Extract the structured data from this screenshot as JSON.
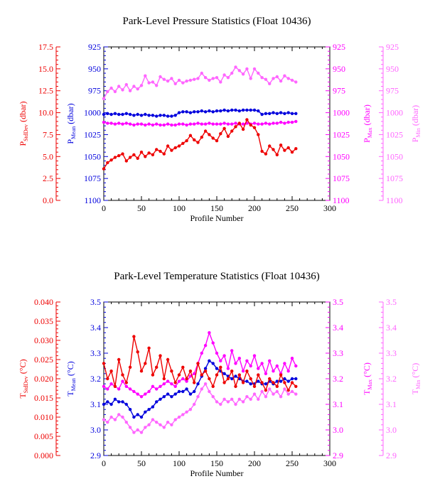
{
  "colors": {
    "stddev": "#ee0000",
    "mean": "#0000dd",
    "max": "#ff00ff",
    "min": "#ff66ff",
    "axis": "#000000"
  },
  "x_axis": {
    "label": "Profile Number",
    "ticks": [
      "0",
      "50",
      "100",
      "150",
      "200",
      "250",
      "300"
    ]
  },
  "chart_data": [
    {
      "type": "line",
      "title": "Park-Level Pressure Statistics (Float 10436)",
      "xlabel": "Profile Number",
      "xlim": [
        0,
        300
      ],
      "axes": [
        {
          "side": "far-left",
          "label_main": "P",
          "label_sub": "StdDev",
          "label_unit": " (dbar)",
          "color": "#ee0000",
          "range": [
            0,
            17.5
          ],
          "ticks": [
            "0.0",
            "2.5",
            "5.0",
            "7.5",
            "10.0",
            "12.5",
            "15.0",
            "17.5"
          ]
        },
        {
          "side": "left",
          "label_main": "P",
          "label_sub": "Mean",
          "label_unit": " (dbar)",
          "color": "#0000dd",
          "range": [
            1100,
            925
          ],
          "inverted": true,
          "ticks": [
            "1100",
            "1075",
            "1050",
            "1025",
            "1000",
            "975",
            "950",
            "925"
          ]
        },
        {
          "side": "right",
          "label_main": "P",
          "label_sub": "Max",
          "label_unit": " (dbar)",
          "color": "#ff00ff",
          "range": [
            1100,
            925
          ],
          "inverted": true,
          "ticks": [
            "1100",
            "1075",
            "1050",
            "1025",
            "1000",
            "975",
            "950",
            "925"
          ]
        },
        {
          "side": "far-right",
          "label_main": "P",
          "label_sub": "Min",
          "label_unit": " (dbar)",
          "color": "#ff66ff",
          "range": [
            1100,
            925
          ],
          "inverted": true,
          "ticks": [
            "1100",
            "1075",
            "1050",
            "1025",
            "1000",
            "975",
            "950",
            "925"
          ]
        }
      ],
      "series": [
        {
          "key": "stddev",
          "axis": 0,
          "color": "#ee0000",
          "x": [
            0,
            5,
            10,
            15,
            20,
            25,
            30,
            35,
            40,
            45,
            50,
            55,
            60,
            65,
            70,
            75,
            80,
            85,
            90,
            95,
            100,
            105,
            110,
            115,
            120,
            125,
            130,
            135,
            140,
            145,
            150,
            155,
            160,
            165,
            170,
            175,
            180,
            185,
            190,
            195,
            200,
            205,
            210,
            215,
            220,
            225,
            230,
            235,
            240,
            245,
            250,
            255
          ],
          "values": [
            3.6,
            4.3,
            4.6,
            4.9,
            5.1,
            5.3,
            4.5,
            4.9,
            5.2,
            4.8,
            5.5,
            5.0,
            5.4,
            5.2,
            5.8,
            5.6,
            5.3,
            6.2,
            5.7,
            6.0,
            6.2,
            6.5,
            6.8,
            7.4,
            6.9,
            6.6,
            7.2,
            7.9,
            7.5,
            7.1,
            6.8,
            7.6,
            8.2,
            7.3,
            7.9,
            8.4,
            8.8,
            8.1,
            9.2,
            8.6,
            8.3,
            7.5,
            5.6,
            5.3,
            6.2,
            5.8,
            5.2,
            6.3,
            5.7,
            6.0,
            5.5,
            5.9
          ]
        },
        {
          "key": "mean",
          "axis": 1,
          "color": "#0000dd",
          "x": [
            0,
            5,
            10,
            15,
            20,
            25,
            30,
            35,
            40,
            45,
            50,
            55,
            60,
            65,
            70,
            75,
            80,
            85,
            90,
            95,
            100,
            105,
            110,
            115,
            120,
            125,
            130,
            135,
            140,
            145,
            150,
            155,
            160,
            165,
            170,
            175,
            180,
            185,
            190,
            195,
            200,
            205,
            210,
            215,
            220,
            225,
            230,
            235,
            240,
            245,
            250,
            255
          ],
          "values": [
            1002,
            1001,
            1002,
            1001,
            1002,
            1002,
            1001,
            1002,
            1003,
            1002,
            1003,
            1002,
            1003,
            1003,
            1004,
            1003,
            1003,
            1004,
            1004,
            1003,
            1000,
            999,
            999,
            1000,
            999,
            999,
            998,
            999,
            998,
            999,
            998,
            998,
            997,
            998,
            997,
            997,
            998,
            997,
            997,
            997,
            997,
            998,
            1002,
            1001,
            1001,
            1000,
            1001,
            1000,
            1001,
            1000,
            1001,
            1001
          ]
        },
        {
          "key": "max",
          "axis": 2,
          "color": "#ff00ff",
          "x": [
            0,
            5,
            10,
            15,
            20,
            25,
            30,
            35,
            40,
            45,
            50,
            55,
            60,
            65,
            70,
            75,
            80,
            85,
            90,
            95,
            100,
            105,
            110,
            115,
            120,
            125,
            130,
            135,
            140,
            145,
            150,
            155,
            160,
            165,
            170,
            175,
            180,
            185,
            190,
            195,
            200,
            205,
            210,
            215,
            220,
            225,
            230,
            235,
            240,
            245,
            250,
            255
          ],
          "values": [
            1011,
            1012,
            1012,
            1013,
            1012,
            1013,
            1012,
            1013,
            1014,
            1013,
            1013,
            1014,
            1013,
            1014,
            1013,
            1014,
            1014,
            1013,
            1014,
            1014,
            1013,
            1013,
            1014,
            1013,
            1013,
            1012,
            1013,
            1013,
            1012,
            1013,
            1013,
            1013,
            1012,
            1013,
            1013,
            1012,
            1013,
            1013,
            1012,
            1013,
            1012,
            1013,
            1013,
            1012,
            1013,
            1012,
            1012,
            1011,
            1012,
            1011,
            1011,
            1010
          ]
        },
        {
          "key": "min",
          "axis": 3,
          "color": "#ff66ff",
          "x": [
            0,
            5,
            10,
            15,
            20,
            25,
            30,
            35,
            40,
            45,
            50,
            55,
            60,
            65,
            70,
            75,
            80,
            85,
            90,
            95,
            100,
            105,
            110,
            115,
            120,
            125,
            130,
            135,
            140,
            145,
            150,
            155,
            160,
            165,
            170,
            175,
            180,
            185,
            190,
            195,
            200,
            205,
            210,
            215,
            220,
            225,
            230,
            235,
            240,
            245,
            250,
            255
          ],
          "values": [
            984,
            976,
            972,
            976,
            970,
            974,
            968,
            975,
            970,
            973,
            969,
            958,
            966,
            965,
            969,
            959,
            962,
            964,
            961,
            967,
            963,
            966,
            964,
            963,
            962,
            961,
            955,
            960,
            963,
            961,
            960,
            965,
            957,
            960,
            955,
            948,
            952,
            956,
            950,
            961,
            950,
            955,
            960,
            962,
            967,
            961,
            959,
            964,
            958,
            961,
            963,
            965
          ]
        }
      ]
    },
    {
      "type": "line",
      "title": "Park-Level Temperature Statistics (Float 10436)",
      "xlabel": "Profile Number",
      "xlim": [
        0,
        300
      ],
      "axes": [
        {
          "side": "far-left",
          "label_main": "T",
          "label_sub": "StdDev",
          "label_unit": " (°C)",
          "color": "#ee0000",
          "range": [
            0,
            0.04
          ],
          "ticks": [
            "0.000",
            "0.005",
            "0.010",
            "0.015",
            "0.020",
            "0.025",
            "0.030",
            "0.035",
            "0.040"
          ]
        },
        {
          "side": "left",
          "label_main": "T",
          "label_sub": "Mean",
          "label_unit": " (°C)",
          "color": "#0000dd",
          "range": [
            2.9,
            3.5
          ],
          "ticks": [
            "2.9",
            "3.0",
            "3.1",
            "3.2",
            "3.3",
            "3.4",
            "3.5"
          ]
        },
        {
          "side": "right",
          "label_main": "T",
          "label_sub": "Max",
          "label_unit": " (°C)",
          "color": "#ff00ff",
          "range": [
            2.9,
            3.5
          ],
          "ticks": [
            "2.9",
            "3.0",
            "3.1",
            "3.2",
            "3.3",
            "3.4",
            "3.5"
          ]
        },
        {
          "side": "far-right",
          "label_main": "T",
          "label_sub": "Min",
          "label_unit": " (°C)",
          "color": "#ff66ff",
          "range": [
            2.9,
            3.5
          ],
          "ticks": [
            "2.9",
            "3.0",
            "3.1",
            "3.2",
            "3.3",
            "3.4",
            "3.5"
          ]
        }
      ],
      "series": [
        {
          "key": "stddev",
          "axis": 0,
          "color": "#ee0000",
          "x": [
            0,
            5,
            10,
            15,
            20,
            25,
            30,
            35,
            40,
            45,
            50,
            55,
            60,
            65,
            70,
            75,
            80,
            85,
            90,
            95,
            100,
            105,
            110,
            115,
            120,
            125,
            130,
            135,
            140,
            145,
            150,
            155,
            160,
            165,
            170,
            175,
            180,
            185,
            190,
            195,
            200,
            205,
            210,
            215,
            220,
            225,
            230,
            235,
            240,
            245,
            250,
            255
          ],
          "values": [
            0.024,
            0.02,
            0.022,
            0.018,
            0.025,
            0.021,
            0.019,
            0.023,
            0.031,
            0.027,
            0.022,
            0.024,
            0.028,
            0.021,
            0.023,
            0.026,
            0.02,
            0.025,
            0.022,
            0.019,
            0.021,
            0.023,
            0.02,
            0.022,
            0.019,
            0.024,
            0.021,
            0.022,
            0.02,
            0.018,
            0.021,
            0.023,
            0.019,
            0.02,
            0.022,
            0.018,
            0.021,
            0.019,
            0.022,
            0.02,
            0.018,
            0.021,
            0.019,
            0.017,
            0.02,
            0.019,
            0.018,
            0.021,
            0.019,
            0.017,
            0.019,
            0.018
          ]
        },
        {
          "key": "mean",
          "axis": 1,
          "color": "#0000dd",
          "x": [
            0,
            5,
            10,
            15,
            20,
            25,
            30,
            35,
            40,
            45,
            50,
            55,
            60,
            65,
            70,
            75,
            80,
            85,
            90,
            95,
            100,
            105,
            110,
            115,
            120,
            125,
            130,
            135,
            140,
            145,
            150,
            155,
            160,
            165,
            170,
            175,
            180,
            185,
            190,
            195,
            200,
            205,
            210,
            215,
            220,
            225,
            230,
            235,
            240,
            245,
            250,
            255
          ],
          "values": [
            3.1,
            3.11,
            3.1,
            3.12,
            3.11,
            3.11,
            3.1,
            3.08,
            3.05,
            3.06,
            3.05,
            3.07,
            3.08,
            3.09,
            3.11,
            3.12,
            3.13,
            3.14,
            3.13,
            3.14,
            3.15,
            3.15,
            3.16,
            3.14,
            3.15,
            3.18,
            3.21,
            3.24,
            3.27,
            3.26,
            3.24,
            3.23,
            3.22,
            3.21,
            3.2,
            3.21,
            3.2,
            3.19,
            3.19,
            3.18,
            3.18,
            3.19,
            3.18,
            3.18,
            3.19,
            3.18,
            3.19,
            3.19,
            3.2,
            3.19,
            3.2,
            3.2
          ]
        },
        {
          "key": "max",
          "axis": 2,
          "color": "#ff00ff",
          "x": [
            0,
            5,
            10,
            15,
            20,
            25,
            30,
            35,
            40,
            45,
            50,
            55,
            60,
            65,
            70,
            75,
            80,
            85,
            90,
            95,
            100,
            105,
            110,
            115,
            120,
            125,
            130,
            135,
            140,
            145,
            150,
            155,
            160,
            165,
            170,
            175,
            180,
            185,
            190,
            195,
            200,
            205,
            210,
            215,
            220,
            225,
            230,
            235,
            240,
            245,
            250,
            255
          ],
          "values": [
            3.17,
            3.16,
            3.18,
            3.17,
            3.16,
            3.19,
            3.17,
            3.16,
            3.15,
            3.14,
            3.13,
            3.14,
            3.15,
            3.17,
            3.16,
            3.17,
            3.18,
            3.19,
            3.18,
            3.17,
            3.19,
            3.2,
            3.19,
            3.21,
            3.22,
            3.26,
            3.3,
            3.33,
            3.38,
            3.34,
            3.3,
            3.27,
            3.29,
            3.24,
            3.31,
            3.26,
            3.28,
            3.23,
            3.27,
            3.25,
            3.29,
            3.24,
            3.26,
            3.22,
            3.27,
            3.23,
            3.25,
            3.22,
            3.26,
            3.23,
            3.28,
            3.25
          ]
        },
        {
          "key": "min",
          "axis": 3,
          "color": "#ff66ff",
          "x": [
            0,
            5,
            10,
            15,
            20,
            25,
            30,
            35,
            40,
            45,
            50,
            55,
            60,
            65,
            70,
            75,
            80,
            85,
            90,
            95,
            100,
            105,
            110,
            115,
            120,
            125,
            130,
            135,
            140,
            145,
            150,
            155,
            160,
            165,
            170,
            175,
            180,
            185,
            190,
            195,
            200,
            205,
            210,
            215,
            220,
            225,
            230,
            235,
            240,
            245,
            250,
            255
          ],
          "values": [
            3.04,
            3.03,
            3.05,
            3.04,
            3.06,
            3.05,
            3.03,
            3.01,
            2.99,
            3.0,
            2.99,
            3.01,
            3.02,
            3.04,
            3.03,
            3.02,
            3.01,
            3.03,
            3.02,
            3.04,
            3.05,
            3.06,
            3.07,
            3.08,
            3.1,
            3.13,
            3.16,
            3.18,
            3.15,
            3.13,
            3.11,
            3.1,
            3.12,
            3.11,
            3.12,
            3.1,
            3.12,
            3.11,
            3.13,
            3.12,
            3.14,
            3.12,
            3.15,
            3.13,
            3.16,
            3.14,
            3.15,
            3.13,
            3.16,
            3.14,
            3.15,
            3.14
          ]
        }
      ]
    }
  ]
}
